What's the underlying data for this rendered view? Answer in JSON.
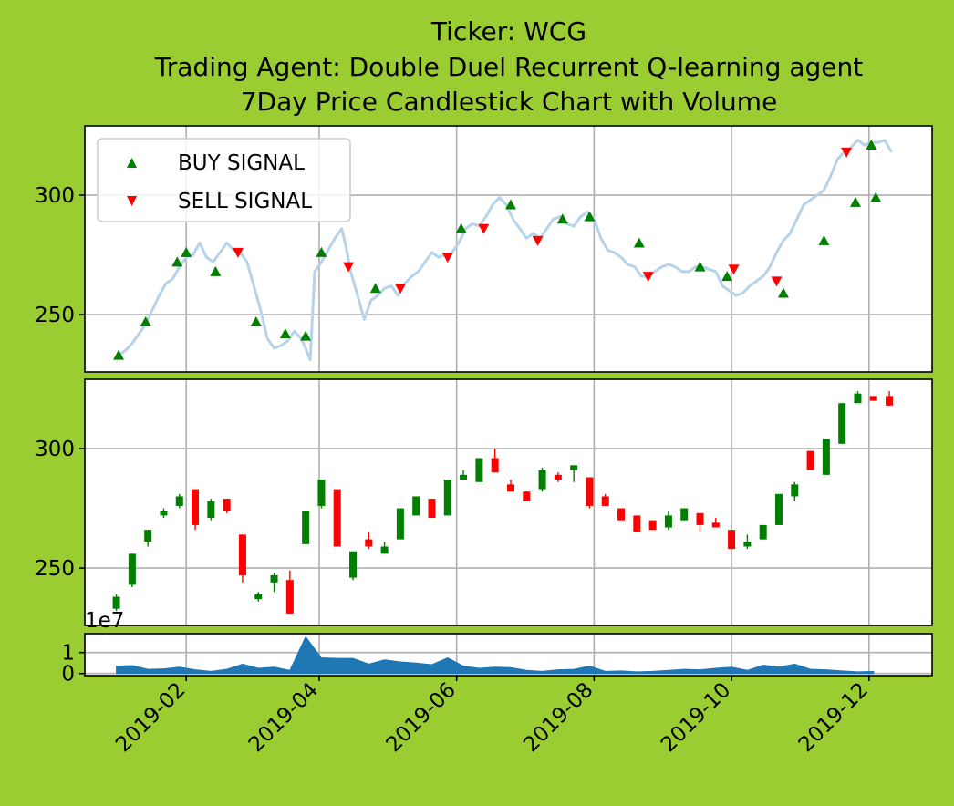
{
  "figure": {
    "background": "#9acd32",
    "title_lines": [
      "Ticker: WCG",
      "Trading Agent: Double Duel Recurrent Q-learning agent",
      "7Day Price Candlestick Chart with Volume"
    ]
  },
  "chart_data": [
    {
      "type": "line",
      "name": "price-with-signals",
      "line_color": "#b7d3e9",
      "legend_placement": "upper-left",
      "legend": [
        {
          "label": "BUY SIGNAL",
          "marker": "triangle-up",
          "color": "#008000"
        },
        {
          "label": "SELL SIGNAL",
          "marker": "triangle-down",
          "color": "#ff0000"
        }
      ],
      "grid": true,
      "xlim": [
        "2018-12-18",
        "2019-12-29"
      ],
      "ylim": [
        226,
        329
      ],
      "yticks": [
        250,
        300
      ],
      "price": [
        [
          "2019-01-02",
          233
        ],
        [
          "2019-01-05",
          235
        ],
        [
          "2019-01-08",
          238
        ],
        [
          "2019-01-11",
          242
        ],
        [
          "2019-01-14",
          246
        ],
        [
          "2019-01-17",
          252
        ],
        [
          "2019-01-20",
          258
        ],
        [
          "2019-01-23",
          263
        ],
        [
          "2019-01-26",
          265
        ],
        [
          "2019-01-29",
          270
        ],
        [
          "2019-02-01",
          274
        ],
        [
          "2019-02-04",
          275
        ],
        [
          "2019-02-07",
          280
        ],
        [
          "2019-02-10",
          274
        ],
        [
          "2019-02-13",
          272
        ],
        [
          "2019-02-16",
          276
        ],
        [
          "2019-02-19",
          280
        ],
        [
          "2019-02-22",
          277
        ],
        [
          "2019-02-25",
          276
        ],
        [
          "2019-02-28",
          272
        ],
        [
          "2019-03-03",
          262
        ],
        [
          "2019-03-06",
          252
        ],
        [
          "2019-03-09",
          240
        ],
        [
          "2019-03-12",
          236
        ],
        [
          "2019-03-15",
          237
        ],
        [
          "2019-03-18",
          239
        ],
        [
          "2019-03-21",
          243
        ],
        [
          "2019-03-24",
          240
        ],
        [
          "2019-03-26",
          236
        ],
        [
          "2019-03-28",
          231
        ],
        [
          "2019-03-30",
          268
        ],
        [
          "2019-04-02",
          272
        ],
        [
          "2019-04-05",
          277
        ],
        [
          "2019-04-08",
          282
        ],
        [
          "2019-04-11",
          286
        ],
        [
          "2019-04-13",
          278
        ],
        [
          "2019-04-15",
          268
        ],
        [
          "2019-04-18",
          258
        ],
        [
          "2019-04-21",
          248
        ],
        [
          "2019-04-24",
          256
        ],
        [
          "2019-04-27",
          258
        ],
        [
          "2019-04-30",
          261
        ],
        [
          "2019-05-03",
          262
        ],
        [
          "2019-05-06",
          258
        ],
        [
          "2019-05-09",
          263
        ],
        [
          "2019-05-12",
          266
        ],
        [
          "2019-05-15",
          268
        ],
        [
          "2019-05-18",
          272
        ],
        [
          "2019-05-21",
          276
        ],
        [
          "2019-05-24",
          274
        ],
        [
          "2019-05-27",
          275
        ],
        [
          "2019-05-30",
          276
        ],
        [
          "2019-06-02",
          280
        ],
        [
          "2019-06-05",
          286
        ],
        [
          "2019-06-08",
          288
        ],
        [
          "2019-06-11",
          287
        ],
        [
          "2019-06-14",
          291
        ],
        [
          "2019-06-17",
          296
        ],
        [
          "2019-06-20",
          299
        ],
        [
          "2019-06-23",
          296
        ],
        [
          "2019-06-26",
          290
        ],
        [
          "2019-06-29",
          286
        ],
        [
          "2019-07-02",
          282
        ],
        [
          "2019-07-05",
          284
        ],
        [
          "2019-07-08",
          282
        ],
        [
          "2019-07-11",
          286
        ],
        [
          "2019-07-14",
          290
        ],
        [
          "2019-07-17",
          291
        ],
        [
          "2019-07-20",
          288
        ],
        [
          "2019-07-23",
          287
        ],
        [
          "2019-07-26",
          291
        ],
        [
          "2019-07-29",
          293
        ],
        [
          "2019-08-01",
          290
        ],
        [
          "2019-08-04",
          282
        ],
        [
          "2019-08-07",
          277
        ],
        [
          "2019-08-10",
          276
        ],
        [
          "2019-08-13",
          274
        ],
        [
          "2019-08-16",
          271
        ],
        [
          "2019-08-19",
          270
        ],
        [
          "2019-08-22",
          266
        ],
        [
          "2019-08-25",
          266
        ],
        [
          "2019-08-28",
          268
        ],
        [
          "2019-08-31",
          270
        ],
        [
          "2019-09-03",
          271
        ],
        [
          "2019-09-06",
          270
        ],
        [
          "2019-09-09",
          268
        ],
        [
          "2019-09-12",
          268
        ],
        [
          "2019-09-15",
          270
        ],
        [
          "2019-09-18",
          270
        ],
        [
          "2019-09-21",
          269
        ],
        [
          "2019-09-24",
          268
        ],
        [
          "2019-09-27",
          262
        ],
        [
          "2019-09-30",
          260
        ],
        [
          "2019-10-03",
          258
        ],
        [
          "2019-10-06",
          259
        ],
        [
          "2019-10-09",
          262
        ],
        [
          "2019-10-12",
          264
        ],
        [
          "2019-10-15",
          266
        ],
        [
          "2019-10-18",
          270
        ],
        [
          "2019-10-21",
          276
        ],
        [
          "2019-10-24",
          281
        ],
        [
          "2019-10-27",
          284
        ],
        [
          "2019-10-30",
          290
        ],
        [
          "2019-11-02",
          296
        ],
        [
          "2019-11-05",
          298
        ],
        [
          "2019-11-08",
          300
        ],
        [
          "2019-11-11",
          302
        ],
        [
          "2019-11-14",
          308
        ],
        [
          "2019-11-17",
          315
        ],
        [
          "2019-11-20",
          318
        ],
        [
          "2019-11-23",
          320
        ],
        [
          "2019-11-26",
          323
        ],
        [
          "2019-11-29",
          321
        ],
        [
          "2019-12-02",
          322
        ],
        [
          "2019-12-05",
          322
        ],
        [
          "2019-12-08",
          323
        ],
        [
          "2019-12-11",
          318
        ]
      ],
      "buy_signals": [
        [
          "2019-01-02",
          233
        ],
        [
          "2019-01-14",
          247
        ],
        [
          "2019-01-28",
          272
        ],
        [
          "2019-02-01",
          276
        ],
        [
          "2019-02-14",
          268
        ],
        [
          "2019-03-04",
          247
        ],
        [
          "2019-03-17",
          242
        ],
        [
          "2019-03-26",
          241
        ],
        [
          "2019-04-02",
          276
        ],
        [
          "2019-04-26",
          261
        ],
        [
          "2019-06-03",
          286
        ],
        [
          "2019-06-25",
          296
        ],
        [
          "2019-07-18",
          290
        ],
        [
          "2019-07-30",
          291
        ],
        [
          "2019-08-21",
          280
        ],
        [
          "2019-09-17",
          270
        ],
        [
          "2019-09-29",
          266
        ],
        [
          "2019-10-24",
          259
        ],
        [
          "2019-11-11",
          281
        ],
        [
          "2019-11-25",
          297
        ],
        [
          "2019-12-04",
          299
        ],
        [
          "2019-12-02",
          321
        ]
      ],
      "sell_signals": [
        [
          "2019-02-24",
          276
        ],
        [
          "2019-04-14",
          270
        ],
        [
          "2019-05-07",
          261
        ],
        [
          "2019-05-28",
          274
        ],
        [
          "2019-06-13",
          286
        ],
        [
          "2019-07-07",
          281
        ],
        [
          "2019-08-25",
          266
        ],
        [
          "2019-10-02",
          269
        ],
        [
          "2019-10-21",
          264
        ],
        [
          "2019-11-21",
          318
        ]
      ]
    },
    {
      "type": "candlestick",
      "name": "weekly-candles",
      "grid": true,
      "up_color": "#008000",
      "down_color": "#ff0000",
      "xlim": [
        "2018-12-18",
        "2019-12-29"
      ],
      "ylim": [
        226,
        329
      ],
      "yticks": [
        250,
        300
      ],
      "candles": [
        [
          "2019-01-01",
          233,
          239,
          232,
          238
        ],
        [
          "2019-01-08",
          243,
          256,
          242,
          256
        ],
        [
          "2019-01-15",
          261,
          266,
          259,
          266
        ],
        [
          "2019-01-22",
          272,
          275,
          271,
          274
        ],
        [
          "2019-01-29",
          276,
          281,
          275,
          280
        ],
        [
          "2019-02-05",
          283,
          283,
          266,
          268
        ],
        [
          "2019-02-12",
          271,
          279,
          270,
          278
        ],
        [
          "2019-02-19",
          279,
          279,
          273,
          274
        ],
        [
          "2019-02-26",
          264,
          264,
          244,
          247
        ],
        [
          "2019-03-05",
          237,
          240,
          236,
          239
        ],
        [
          "2019-03-12",
          244,
          248,
          240,
          247
        ],
        [
          "2019-03-19",
          245,
          249,
          231,
          231
        ],
        [
          "2019-03-26",
          260,
          274,
          260,
          274
        ],
        [
          "2019-04-02",
          276,
          287,
          275,
          287
        ],
        [
          "2019-04-09",
          283,
          283,
          259,
          259
        ],
        [
          "2019-04-16",
          246,
          257,
          245,
          257
        ],
        [
          "2019-04-23",
          262,
          265,
          258,
          259
        ],
        [
          "2019-04-30",
          256,
          261,
          256,
          259
        ],
        [
          "2019-05-07",
          262,
          275,
          262,
          275
        ],
        [
          "2019-05-14",
          272,
          280,
          272,
          280
        ],
        [
          "2019-05-21",
          279,
          279,
          271,
          271
        ],
        [
          "2019-05-28",
          272,
          287,
          272,
          287
        ],
        [
          "2019-06-04",
          287,
          291,
          287,
          289
        ],
        [
          "2019-06-11",
          286,
          296,
          286,
          296
        ],
        [
          "2019-06-18",
          296,
          300,
          290,
          290
        ],
        [
          "2019-06-25",
          285,
          287,
          282,
          282
        ],
        [
          "2019-07-02",
          282,
          282,
          278,
          278
        ],
        [
          "2019-07-09",
          283,
          292,
          282,
          291
        ],
        [
          "2019-07-16",
          289,
          290,
          286,
          287
        ],
        [
          "2019-07-23",
          291,
          293,
          286,
          293
        ],
        [
          "2019-07-30",
          288,
          288,
          275,
          276
        ],
        [
          "2019-08-06",
          280,
          281,
          276,
          276
        ],
        [
          "2019-08-13",
          275,
          275,
          270,
          270
        ],
        [
          "2019-08-20",
          272,
          272,
          265,
          265
        ],
        [
          "2019-08-27",
          270,
          270,
          266,
          266
        ],
        [
          "2019-09-03",
          267,
          274,
          266,
          272
        ],
        [
          "2019-09-10",
          270,
          275,
          270,
          275
        ],
        [
          "2019-09-17",
          273,
          273,
          265,
          268
        ],
        [
          "2019-09-24",
          269,
          271,
          267,
          267
        ],
        [
          "2019-10-01",
          266,
          266,
          258,
          258
        ],
        [
          "2019-10-08",
          259,
          264,
          258,
          261
        ],
        [
          "2019-10-15",
          262,
          268,
          262,
          268
        ],
        [
          "2019-10-22",
          268,
          281,
          268,
          281
        ],
        [
          "2019-10-29",
          280,
          286,
          278,
          285
        ],
        [
          "2019-11-05",
          299,
          299,
          291,
          291
        ],
        [
          "2019-11-12",
          289,
          304,
          289,
          304
        ],
        [
          "2019-11-19",
          302,
          319,
          302,
          319
        ],
        [
          "2019-11-26",
          319,
          324,
          319,
          323
        ],
        [
          "2019-12-03",
          322,
          322,
          320,
          320
        ],
        [
          "2019-12-10",
          322,
          324,
          318,
          318
        ]
      ]
    },
    {
      "type": "area",
      "name": "volume",
      "color": "#1f77b4",
      "grid": true,
      "offset_label": "1e7",
      "xlim": [
        "2018-12-18",
        "2019-12-29"
      ],
      "ylim": [
        -0.1,
        1.9
      ],
      "yticks": [
        0,
        1
      ],
      "xticks": [
        "2019-02",
        "2019-04",
        "2019-06",
        "2019-08",
        "2019-10",
        "2019-12"
      ],
      "volume_1e7": [
        [
          "2019-01-01",
          0.35
        ],
        [
          "2019-01-08",
          0.38
        ],
        [
          "2019-01-15",
          0.2
        ],
        [
          "2019-01-22",
          0.22
        ],
        [
          "2019-01-29",
          0.3
        ],
        [
          "2019-02-05",
          0.18
        ],
        [
          "2019-02-12",
          0.1
        ],
        [
          "2019-02-19",
          0.2
        ],
        [
          "2019-02-26",
          0.45
        ],
        [
          "2019-03-05",
          0.25
        ],
        [
          "2019-03-12",
          0.3
        ],
        [
          "2019-03-19",
          0.15
        ],
        [
          "2019-03-26",
          1.75
        ],
        [
          "2019-04-02",
          0.75
        ],
        [
          "2019-04-09",
          0.72
        ],
        [
          "2019-04-16",
          0.72
        ],
        [
          "2019-04-23",
          0.45
        ],
        [
          "2019-04-30",
          0.65
        ],
        [
          "2019-05-07",
          0.55
        ],
        [
          "2019-05-14",
          0.5
        ],
        [
          "2019-05-21",
          0.42
        ],
        [
          "2019-05-28",
          0.75
        ],
        [
          "2019-06-04",
          0.35
        ],
        [
          "2019-06-11",
          0.25
        ],
        [
          "2019-06-18",
          0.3
        ],
        [
          "2019-06-25",
          0.28
        ],
        [
          "2019-07-02",
          0.15
        ],
        [
          "2019-07-09",
          0.1
        ],
        [
          "2019-07-16",
          0.18
        ],
        [
          "2019-07-23",
          0.2
        ],
        [
          "2019-07-30",
          0.35
        ],
        [
          "2019-08-06",
          0.1
        ],
        [
          "2019-08-13",
          0.12
        ],
        [
          "2019-08-20",
          0.08
        ],
        [
          "2019-08-27",
          0.1
        ],
        [
          "2019-09-03",
          0.15
        ],
        [
          "2019-09-10",
          0.2
        ],
        [
          "2019-09-17",
          0.18
        ],
        [
          "2019-09-24",
          0.25
        ],
        [
          "2019-10-01",
          0.3
        ],
        [
          "2019-10-08",
          0.15
        ],
        [
          "2019-10-15",
          0.4
        ],
        [
          "2019-10-22",
          0.3
        ],
        [
          "2019-10-29",
          0.45
        ],
        [
          "2019-11-05",
          0.2
        ],
        [
          "2019-11-12",
          0.18
        ],
        [
          "2019-11-19",
          0.12
        ],
        [
          "2019-11-26",
          0.08
        ],
        [
          "2019-12-03",
          0.1
        ]
      ]
    }
  ]
}
